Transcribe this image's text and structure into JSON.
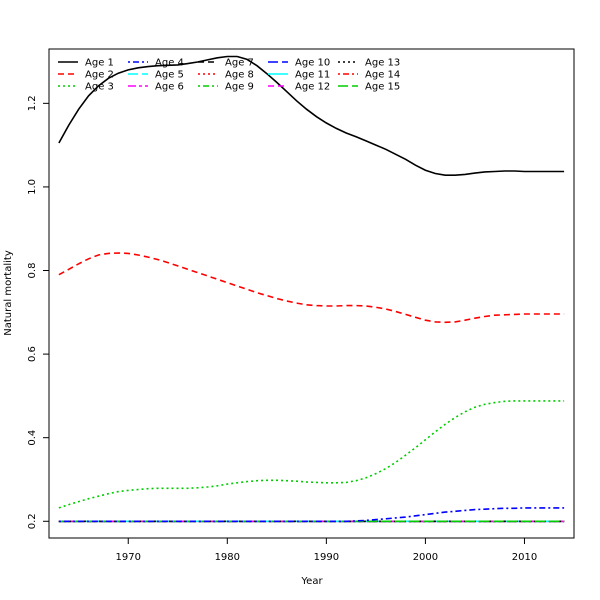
{
  "chart_data": {
    "type": "line",
    "title": "",
    "xlabel": "Year",
    "ylabel": "Natural mortality",
    "xlim": [
      1962,
      2015
    ],
    "ylim": [
      0.16,
      1.33
    ],
    "x_ticks": [
      1970,
      1980,
      1990,
      2000,
      2010
    ],
    "y_ticks": [
      0.2,
      0.4,
      0.6,
      0.8,
      1.0,
      1.2
    ],
    "x_tick_labels": [
      "1970",
      "1980",
      "1990",
      "2000",
      "2010"
    ],
    "y_tick_labels": [
      "0.2",
      "0.4",
      "0.6",
      "0.8",
      "1.0",
      "1.2"
    ],
    "grid": false,
    "legend_position": "top-left",
    "x": [
      1963,
      1964,
      1965,
      1966,
      1967,
      1968,
      1969,
      1970,
      1971,
      1972,
      1973,
      1974,
      1975,
      1976,
      1977,
      1978,
      1979,
      1980,
      1981,
      1982,
      1983,
      1984,
      1985,
      1986,
      1987,
      1988,
      1989,
      1990,
      1991,
      1992,
      1993,
      1994,
      1995,
      1996,
      1997,
      1998,
      1999,
      2000,
      2001,
      2002,
      2003,
      2004,
      2005,
      2006,
      2007,
      2008,
      2009,
      2010,
      2011,
      2012,
      2013,
      2014
    ],
    "series": [
      {
        "name": "Age 1",
        "color": "#000000",
        "dash": "solid",
        "values": [
          1.105,
          1.148,
          1.186,
          1.218,
          1.242,
          1.26,
          1.272,
          1.28,
          1.285,
          1.288,
          1.29,
          1.291,
          1.292,
          1.295,
          1.299,
          1.304,
          1.309,
          1.312,
          1.312,
          1.305,
          1.29,
          1.271,
          1.25,
          1.228,
          1.206,
          1.186,
          1.168,
          1.153,
          1.14,
          1.129,
          1.12,
          1.11,
          1.1,
          1.09,
          1.078,
          1.066,
          1.052,
          1.04,
          1.032,
          1.028,
          1.028,
          1.03,
          1.033,
          1.036,
          1.037,
          1.038,
          1.038,
          1.037,
          1.037,
          1.037,
          1.037,
          1.037
        ]
      },
      {
        "name": "Age 2",
        "color": "#ff0000",
        "dash": "dashed",
        "values": [
          0.79,
          0.803,
          0.816,
          0.828,
          0.837,
          0.841,
          0.842,
          0.841,
          0.837,
          0.832,
          0.826,
          0.819,
          0.811,
          0.803,
          0.795,
          0.787,
          0.779,
          0.771,
          0.763,
          0.755,
          0.747,
          0.74,
          0.733,
          0.727,
          0.722,
          0.718,
          0.716,
          0.715,
          0.715,
          0.716,
          0.716,
          0.715,
          0.712,
          0.708,
          0.702,
          0.695,
          0.688,
          0.681,
          0.677,
          0.676,
          0.677,
          0.681,
          0.686,
          0.69,
          0.693,
          0.694,
          0.695,
          0.696,
          0.696,
          0.696,
          0.696,
          0.696
        ]
      },
      {
        "name": "Age 3",
        "color": "#00cd00",
        "dash": "dotted",
        "values": [
          0.232,
          0.24,
          0.247,
          0.254,
          0.26,
          0.266,
          0.271,
          0.274,
          0.276,
          0.278,
          0.279,
          0.279,
          0.279,
          0.279,
          0.28,
          0.282,
          0.285,
          0.289,
          0.292,
          0.295,
          0.297,
          0.298,
          0.298,
          0.297,
          0.296,
          0.294,
          0.293,
          0.292,
          0.292,
          0.293,
          0.297,
          0.304,
          0.314,
          0.326,
          0.341,
          0.358,
          0.376,
          0.395,
          0.414,
          0.432,
          0.448,
          0.462,
          0.473,
          0.48,
          0.484,
          0.487,
          0.488,
          0.488,
          0.488,
          0.488,
          0.488,
          0.488
        ]
      },
      {
        "name": "Age 4",
        "color": "#0000ff",
        "dash": "dotdash",
        "values": [
          0.2,
          0.2,
          0.2,
          0.2,
          0.2,
          0.2,
          0.2,
          0.2,
          0.2,
          0.2,
          0.2,
          0.2,
          0.2,
          0.2,
          0.2,
          0.2,
          0.2,
          0.2,
          0.2,
          0.2,
          0.2,
          0.2,
          0.2,
          0.2,
          0.2,
          0.2,
          0.2,
          0.2,
          0.2,
          0.2,
          0.201,
          0.202,
          0.204,
          0.206,
          0.208,
          0.21,
          0.213,
          0.216,
          0.219,
          0.222,
          0.224,
          0.226,
          0.228,
          0.229,
          0.23,
          0.231,
          0.231,
          0.232,
          0.232,
          0.232,
          0.232,
          0.232
        ]
      },
      {
        "name": "Age 5",
        "color": "#00ffff",
        "dash": "longdash",
        "values": "constant:0.2"
      },
      {
        "name": "Age 6",
        "color": "#ff00ff",
        "dash": "twodash",
        "values": "constant:0.2"
      },
      {
        "name": "Age 7",
        "color": "#000000",
        "dash": "dashed",
        "values": "constant:0.2"
      },
      {
        "name": "Age 8",
        "color": "#ff0000",
        "dash": "dotted",
        "values": "constant:0.2"
      },
      {
        "name": "Age 9",
        "color": "#00cd00",
        "dash": "dotdash",
        "values": "constant:0.2"
      },
      {
        "name": "Age 10",
        "color": "#0000ff",
        "dash": "longdash",
        "values": "constant:0.2"
      },
      {
        "name": "Age 11",
        "color": "#00ffff",
        "dash": "solid",
        "values": "constant:0.2"
      },
      {
        "name": "Age 12",
        "color": "#ff00ff",
        "dash": "dashed",
        "values": "constant:0.2"
      },
      {
        "name": "Age 13",
        "color": "#000000",
        "dash": "dotted",
        "values": "constant:0.2"
      },
      {
        "name": "Age 14",
        "color": "#ff0000",
        "dash": "dotdash",
        "values": "constant:0.2"
      },
      {
        "name": "Age 15",
        "color": "#00cd00",
        "dash": "longdash",
        "values": "constant:0.2"
      }
    ]
  }
}
